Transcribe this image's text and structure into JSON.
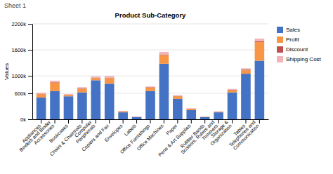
{
  "chart_data": {
    "type": "bar",
    "stacked": true,
    "title": "Product Sub-Category",
    "subtitle": "Sheet 1",
    "ylabel": "Values",
    "categories": [
      "Appliances",
      "Binders and Binder\nAccessories",
      "Bookcases",
      "Chairs & Chairmats",
      "Computer\nPeripherals",
      "Copiers and Fax",
      "Envelopes",
      "Labels",
      "Office Furnishings",
      "Office Machines",
      "Paper",
      "Pens & Art Supplies",
      "Rubber Bands",
      "Scissors, Rulers and\nTrimmers",
      "Storage &\nOrganization",
      "Tables",
      "Telephones and\nCommunication"
    ],
    "series": [
      {
        "name": "Sales",
        "color": "#4472c4",
        "values": [
          500,
          650,
          530,
          620,
          900,
          820,
          160,
          50,
          650,
          1280,
          470,
          210,
          50,
          160,
          620,
          1050,
          1350
        ]
      },
      {
        "name": "Profit",
        "color": "#f79646",
        "values": [
          80,
          200,
          30,
          80,
          50,
          130,
          20,
          5,
          80,
          200,
          60,
          30,
          5,
          10,
          50,
          80,
          430
        ]
      },
      {
        "name": "Discount",
        "color": "#c0504d",
        "values": [
          10,
          10,
          5,
          10,
          10,
          10,
          5,
          3,
          10,
          15,
          10,
          5,
          3,
          5,
          10,
          15,
          20
        ]
      },
      {
        "name": "Shipping Cost",
        "color": "#f2b4b8",
        "values": [
          20,
          30,
          15,
          30,
          30,
          40,
          8,
          2,
          15,
          60,
          15,
          8,
          2,
          8,
          20,
          30,
          60
        ]
      }
    ],
    "ylim": [
      0,
      2200
    ],
    "yticks": [
      {
        "value": 0,
        "label": "0k"
      },
      {
        "value": 600,
        "label": "600k"
      },
      {
        "value": 1000,
        "label": "1000k"
      },
      {
        "value": 1600,
        "label": "1600k"
      },
      {
        "value": 2200,
        "label": "2200k"
      }
    ],
    "grid": true,
    "legend": "right"
  }
}
